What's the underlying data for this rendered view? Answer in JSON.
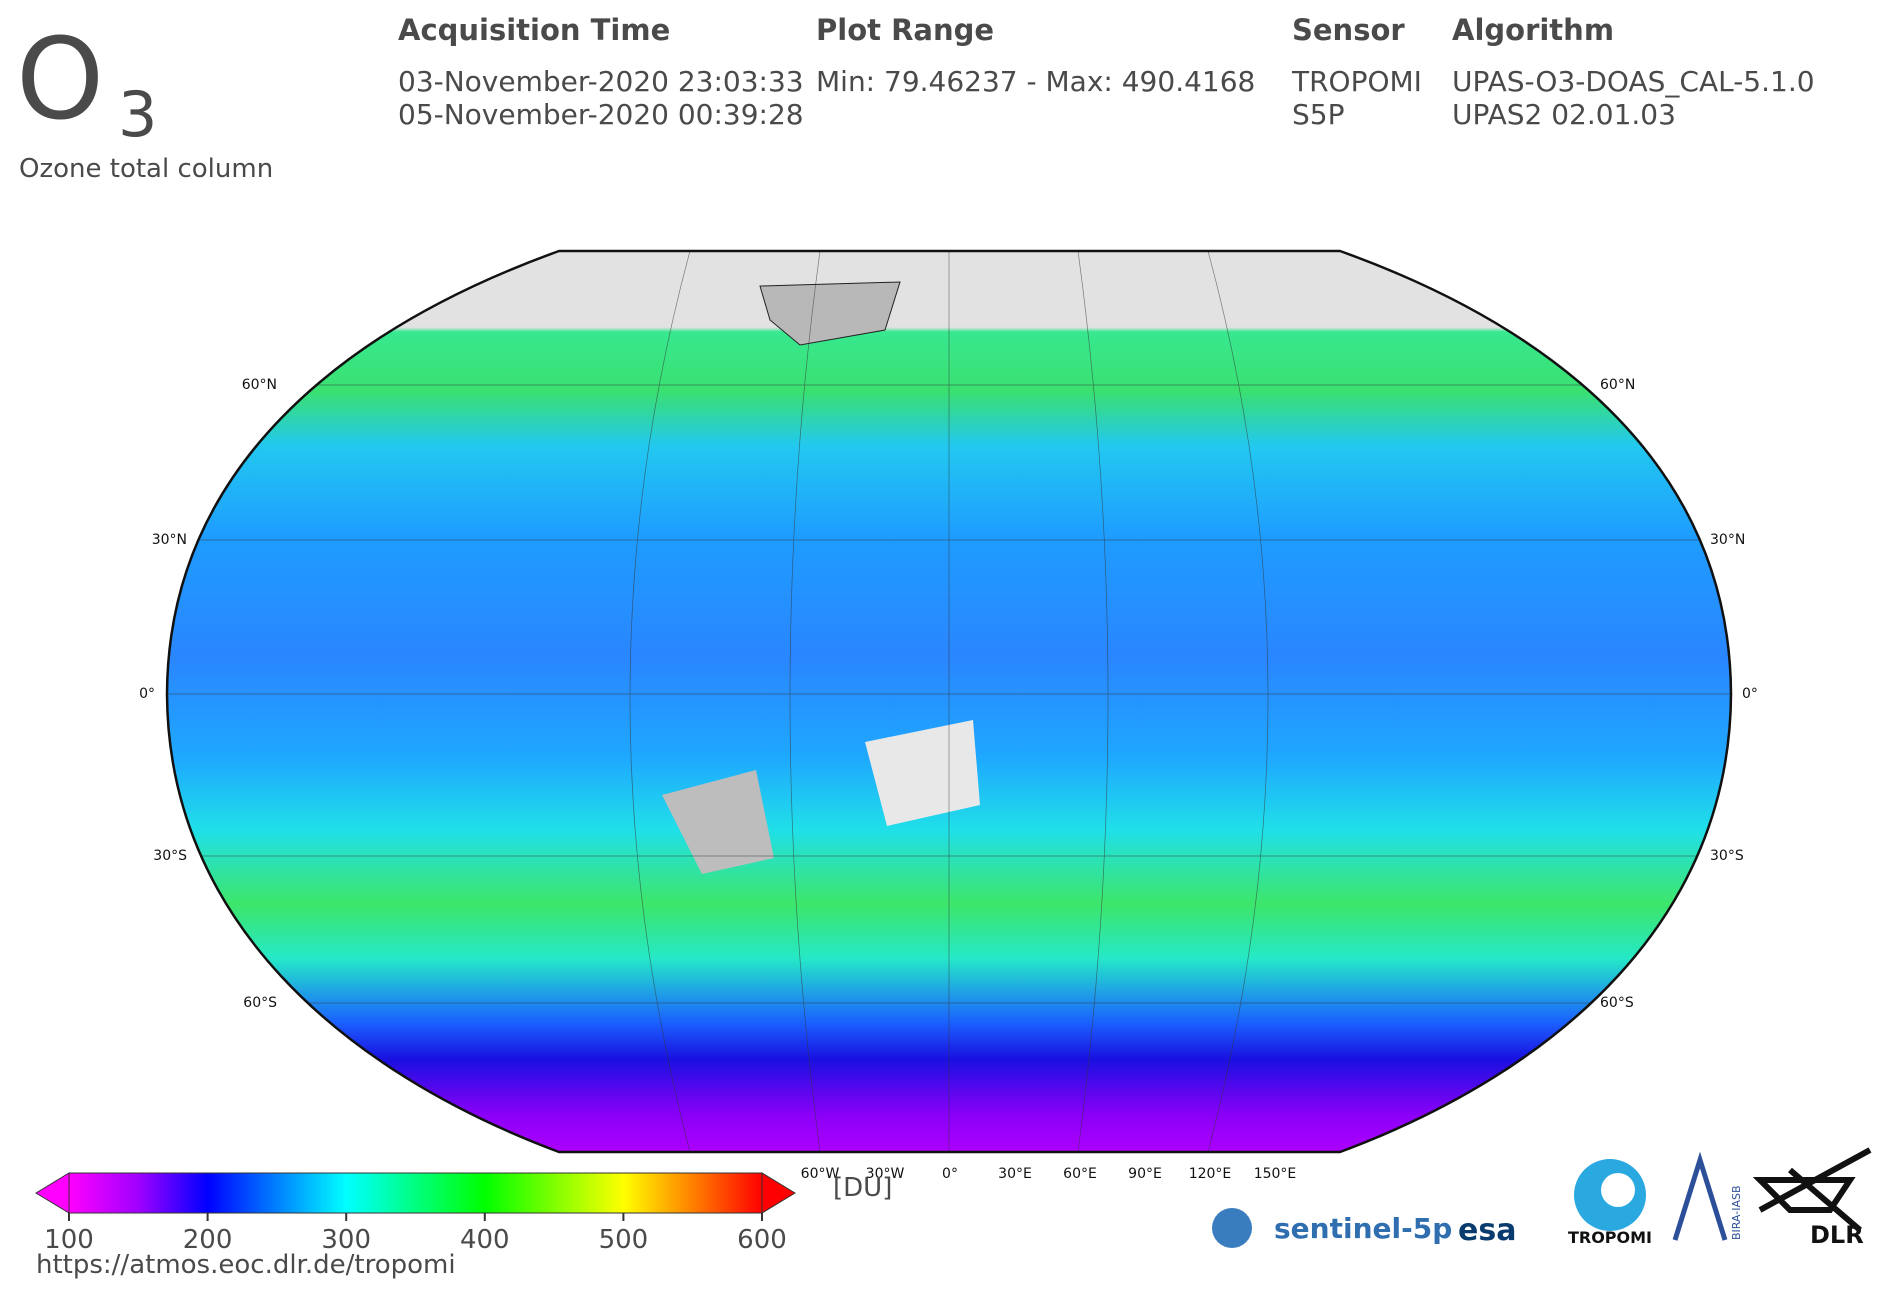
{
  "header": {
    "symbol": "O",
    "subscript": "3",
    "subtitle": "Ozone total column"
  },
  "info": [
    {
      "heading": "Acquisition Time",
      "lines": [
        "03-November-2020 23:03:33",
        "05-November-2020 00:39:28"
      ]
    },
    {
      "heading": "Plot Range",
      "lines": [
        "Min: 79.46237 - Max: 490.4168"
      ]
    },
    {
      "heading": "Sensor",
      "lines": [
        "TROPOMI",
        "S5P"
      ]
    },
    {
      "heading": "Algorithm",
      "lines": [
        "UPAS-O3-DOAS_CAL-5.1.0",
        "UPAS2 02.01.03"
      ]
    }
  ],
  "map": {
    "lat_labels": [
      "60°N",
      "30°N",
      "0°",
      "30°S",
      "60°S"
    ],
    "lon_labels": [
      "60°W",
      "30°W",
      "0°",
      "30°E",
      "60°E",
      "90°E",
      "120°E",
      "150°E"
    ]
  },
  "colorbar": {
    "ticks": [
      100,
      200,
      300,
      400,
      500,
      600
    ],
    "unit": "[DU]"
  },
  "logos": [
    "sentinel-5p",
    "esa",
    "TROPOMI",
    "BIRA-IASB",
    "DLR"
  ],
  "url": "https://atmos.eoc.dlr.de/tropomi"
}
